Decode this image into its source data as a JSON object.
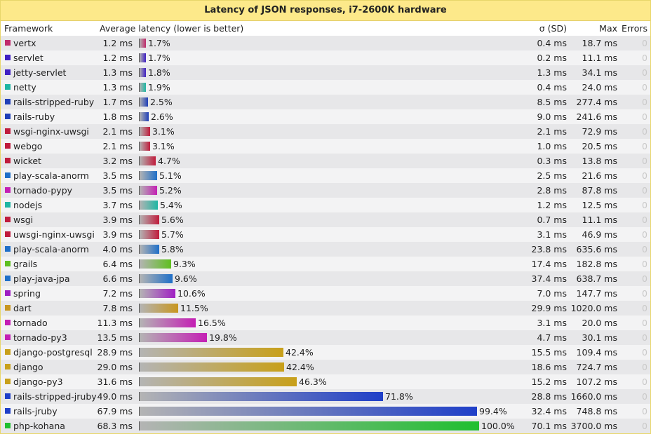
{
  "title": "Latency of JSON responses, i7-2600K hardware",
  "headers": {
    "framework": "Framework",
    "latency": "Average latency (lower is better)",
    "sd": "σ (SD)",
    "max": "Max",
    "errors": "Errors"
  },
  "chart_data": {
    "type": "bar",
    "title": "Latency of JSON responses, i7-2600K hardware",
    "value_unit": "ms",
    "rows": [
      {
        "name": "vertx",
        "latency": "1.2 ms",
        "value": 1.2,
        "pct": "1.7%",
        "sd": "0.4 ms",
        "max": "18.7 ms",
        "errors": "0",
        "color": "#c0296b"
      },
      {
        "name": "servlet",
        "latency": "1.2 ms",
        "value": 1.2,
        "pct": "1.7%",
        "sd": "0.2 ms",
        "max": "11.1 ms",
        "errors": "0",
        "color": "#3f1fc3"
      },
      {
        "name": "jetty-servlet",
        "latency": "1.3 ms",
        "value": 1.3,
        "pct": "1.8%",
        "sd": "1.3 ms",
        "max": "34.1 ms",
        "errors": "0",
        "color": "#3f1fc3"
      },
      {
        "name": "netty",
        "latency": "1.3 ms",
        "value": 1.3,
        "pct": "1.9%",
        "sd": "0.4 ms",
        "max": "24.0 ms",
        "errors": "0",
        "color": "#1fb6a3"
      },
      {
        "name": "rails-stripped-ruby",
        "latency": "1.7 ms",
        "value": 1.7,
        "pct": "2.5%",
        "sd": "8.5 ms",
        "max": "277.4 ms",
        "errors": "0",
        "color": "#1f3fb8"
      },
      {
        "name": "rails-ruby",
        "latency": "1.8 ms",
        "value": 1.8,
        "pct": "2.6%",
        "sd": "9.0 ms",
        "max": "241.6 ms",
        "errors": "0",
        "color": "#1f3fb8"
      },
      {
        "name": "wsgi-nginx-uwsgi",
        "latency": "2.1 ms",
        "value": 2.1,
        "pct": "3.1%",
        "sd": "2.1 ms",
        "max": "72.9 ms",
        "errors": "0",
        "color": "#c01c3c"
      },
      {
        "name": "webgo",
        "latency": "2.1 ms",
        "value": 2.1,
        "pct": "3.1%",
        "sd": "1.0 ms",
        "max": "20.5 ms",
        "errors": "0",
        "color": "#c01c3c"
      },
      {
        "name": "wicket",
        "latency": "3.2 ms",
        "value": 3.2,
        "pct": "4.7%",
        "sd": "0.3 ms",
        "max": "13.8 ms",
        "errors": "0",
        "color": "#c01c3c"
      },
      {
        "name": "play-scala-anorm",
        "latency": "3.5 ms",
        "value": 3.5,
        "pct": "5.1%",
        "sd": "2.5 ms",
        "max": "21.6 ms",
        "errors": "0",
        "color": "#1f6fc8"
      },
      {
        "name": "tornado-pypy",
        "latency": "3.5 ms",
        "value": 3.5,
        "pct": "5.2%",
        "sd": "2.8 ms",
        "max": "87.8 ms",
        "errors": "0",
        "color": "#c41fb4"
      },
      {
        "name": "nodejs",
        "latency": "3.7 ms",
        "value": 3.7,
        "pct": "5.4%",
        "sd": "1.2 ms",
        "max": "12.5 ms",
        "errors": "0",
        "color": "#1fb6a3"
      },
      {
        "name": "wsgi",
        "latency": "3.9 ms",
        "value": 3.9,
        "pct": "5.6%",
        "sd": "0.7 ms",
        "max": "11.1 ms",
        "errors": "0",
        "color": "#c01c3c"
      },
      {
        "name": "uwsgi-nginx-uwsgi",
        "latency": "3.9 ms",
        "value": 3.9,
        "pct": "5.7%",
        "sd": "3.1 ms",
        "max": "46.9 ms",
        "errors": "0",
        "color": "#c01c3c"
      },
      {
        "name": "play-scala-anorm",
        "latency": "4.0 ms",
        "value": 4.0,
        "pct": "5.8%",
        "sd": "23.8 ms",
        "max": "635.6 ms",
        "errors": "0",
        "color": "#1f6fc8"
      },
      {
        "name": "grails",
        "latency": "6.4 ms",
        "value": 6.4,
        "pct": "9.3%",
        "sd": "17.4 ms",
        "max": "182.8 ms",
        "errors": "0",
        "color": "#5fbf1f"
      },
      {
        "name": "play-java-jpa",
        "latency": "6.6 ms",
        "value": 6.6,
        "pct": "9.6%",
        "sd": "37.4 ms",
        "max": "638.7 ms",
        "errors": "0",
        "color": "#1f6fc8"
      },
      {
        "name": "spring",
        "latency": "7.2 ms",
        "value": 7.2,
        "pct": "10.6%",
        "sd": "7.0 ms",
        "max": "147.7 ms",
        "errors": "0",
        "color": "#9f1fc3"
      },
      {
        "name": "dart",
        "latency": "7.8 ms",
        "value": 7.8,
        "pct": "11.5%",
        "sd": "29.9 ms",
        "max": "1020.0 ms",
        "errors": "0",
        "color": "#c8961f"
      },
      {
        "name": "tornado",
        "latency": "11.3 ms",
        "value": 11.3,
        "pct": "16.5%",
        "sd": "3.1 ms",
        "max": "20.0 ms",
        "errors": "0",
        "color": "#c41fb4"
      },
      {
        "name": "tornado-py3",
        "latency": "13.5 ms",
        "value": 13.5,
        "pct": "19.8%",
        "sd": "4.7 ms",
        "max": "30.1 ms",
        "errors": "0",
        "color": "#c41fb4"
      },
      {
        "name": "django-postgresql",
        "latency": "28.9 ms",
        "value": 28.9,
        "pct": "42.4%",
        "sd": "15.5 ms",
        "max": "109.4 ms",
        "errors": "0",
        "color": "#c8a01a"
      },
      {
        "name": "django",
        "latency": "29.0 ms",
        "value": 29.0,
        "pct": "42.4%",
        "sd": "18.6 ms",
        "max": "724.7 ms",
        "errors": "0",
        "color": "#c8a01a"
      },
      {
        "name": "django-py3",
        "latency": "31.6 ms",
        "value": 31.6,
        "pct": "46.3%",
        "sd": "15.2 ms",
        "max": "107.2 ms",
        "errors": "0",
        "color": "#c8a01a"
      },
      {
        "name": "rails-stripped-jruby",
        "latency": "49.0 ms",
        "value": 49.0,
        "pct": "71.8%",
        "sd": "28.8 ms",
        "max": "1660.0 ms",
        "errors": "0",
        "color": "#1f3fc8"
      },
      {
        "name": "rails-jruby",
        "latency": "67.9 ms",
        "value": 67.9,
        "pct": "99.4%",
        "sd": "32.4 ms",
        "max": "748.8 ms",
        "errors": "0",
        "color": "#1f3fc8"
      },
      {
        "name": "php-kohana",
        "latency": "68.3 ms",
        "value": 68.3,
        "pct": "100.0%",
        "sd": "70.1 ms",
        "max": "3700.0 ms",
        "errors": "0",
        "color": "#1fbf2f"
      }
    ]
  }
}
